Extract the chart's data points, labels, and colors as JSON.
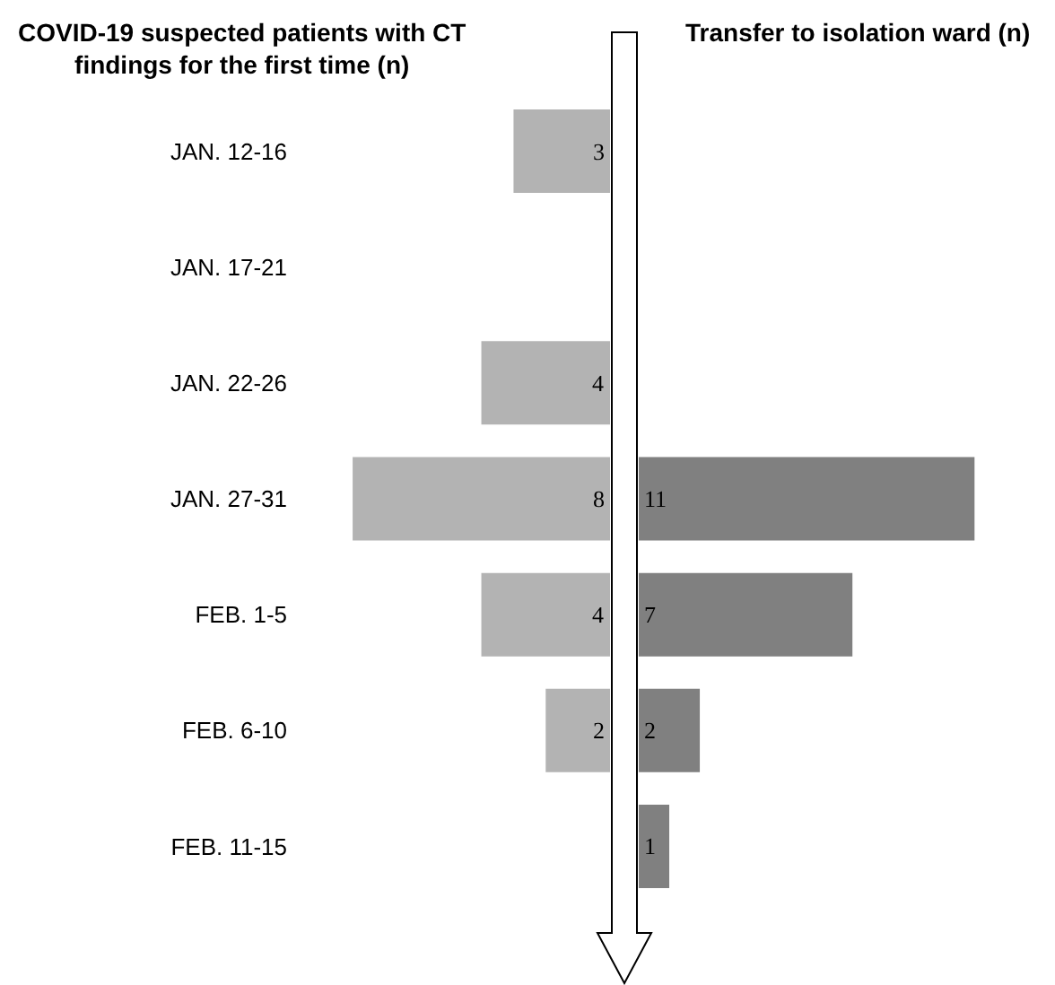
{
  "chart_data": [
    {
      "type": "bar",
      "orientation": "horizontal",
      "title": "COVID-19 suspected patients with CT\nfindings for the first time (n)",
      "categories": [
        "JAN. 12-16",
        "JAN. 17-21",
        "JAN. 22-26",
        "JAN. 27-31",
        "FEB. 1-5",
        "FEB. 6-10",
        "FEB. 11-15"
      ],
      "values": [
        3,
        null,
        4,
        8,
        4,
        2,
        null
      ],
      "color": "#b3b3b3",
      "data_labels": true,
      "tick_labels": "y"
    },
    {
      "type": "bar",
      "orientation": "horizontal",
      "title": "Transfer to isolation ward (n)",
      "categories": [
        null,
        null,
        null,
        null,
        null,
        null,
        null
      ],
      "values": [
        null,
        null,
        null,
        11,
        7,
        2,
        1
      ],
      "color": "#808080",
      "data_labels": true,
      "tick_labels": false
    }
  ]
}
